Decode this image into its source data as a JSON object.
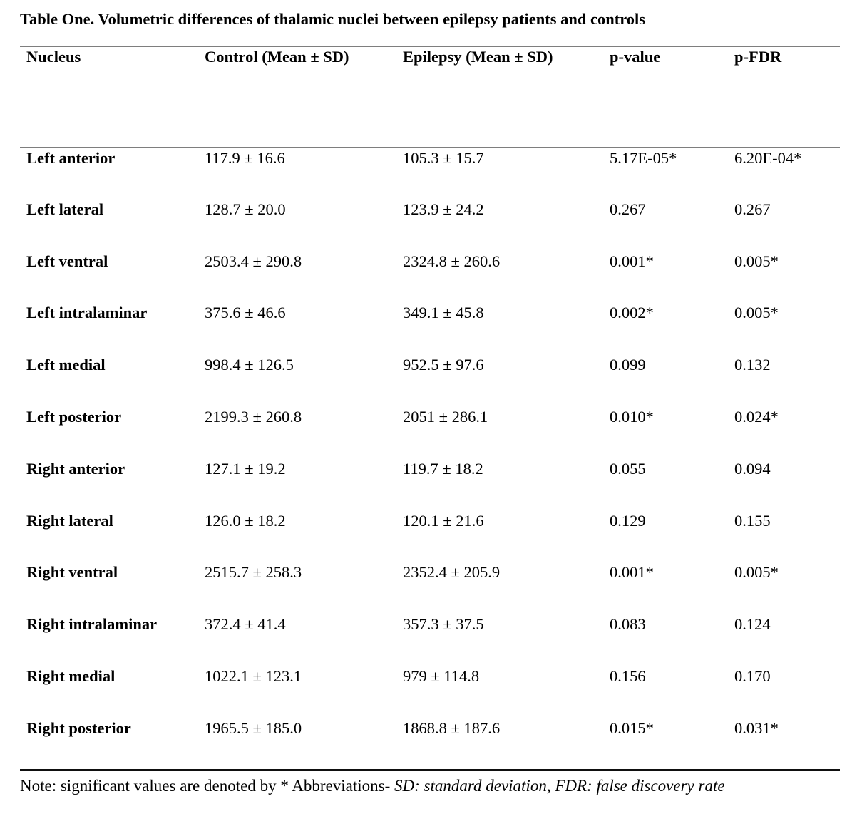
{
  "page": {
    "title": "Table One. Volumetric differences of thalamic nuclei between epilepsy patients and controls"
  },
  "table": {
    "headers": [
      "Nucleus",
      "Control (Mean ± SD)",
      "Epilepsy (Mean ± SD)",
      "p-value",
      "p-FDR"
    ],
    "column_ids": [
      "nucleus",
      "control-mean-sd",
      "epilepsy-mean-sd",
      "p-value",
      "p-fdr"
    ],
    "rows": [
      [
        "Left anterior",
        "117.9 ± 16.6",
        "105.3 ± 15.7",
        "5.17E-05*",
        "6.20E-04*"
      ],
      [
        "Left lateral",
        "128.7 ± 20.0",
        "123.9 ± 24.2",
        "0.267",
        "0.267"
      ],
      [
        "Left ventral",
        "2503.4 ± 290.8",
        "2324.8 ± 260.6",
        "0.001*",
        "0.005*"
      ],
      [
        "Left intralaminar",
        "375.6 ± 46.6",
        "349.1 ± 45.8",
        "0.002*",
        "0.005*"
      ],
      [
        "Left medial",
        "998.4 ± 126.5",
        "952.5 ± 97.6",
        "0.099",
        "0.132"
      ],
      [
        "Left posterior",
        "2199.3 ± 260.8",
        "2051 ± 286.1",
        "0.010*",
        "0.024*"
      ],
      [
        "Right anterior",
        "127.1 ± 19.2",
        "119.7 ± 18.2",
        "0.055",
        "0.094"
      ],
      [
        "Right lateral",
        "126.0 ± 18.2",
        "120.1 ± 21.6",
        "0.129",
        "0.155"
      ],
      [
        "Right ventral",
        "2515.7 ± 258.3",
        "2352.4 ± 205.9",
        "0.001*",
        "0.005*"
      ],
      [
        "Right intralaminar",
        "372.4 ± 41.4",
        "357.3 ± 37.5",
        "0.083",
        "0.124"
      ],
      [
        "Right medial",
        "1022.1 ± 123.1",
        "979 ± 114.8",
        "0.156",
        "0.170"
      ],
      [
        "Right posterior",
        "1965.5 ± 185.0",
        "1868.8 ± 187.6",
        "0.015*",
        "0.031*"
      ]
    ]
  },
  "note": {
    "regular": "Note: significant values are denoted by * Abbreviations- ",
    "italic": "SD: standard deviation, FDR: false discovery rate"
  },
  "colors": {
    "rule_gray": "#7e7e7e",
    "rule_black": "#0f0f0f",
    "text": "#000000"
  }
}
